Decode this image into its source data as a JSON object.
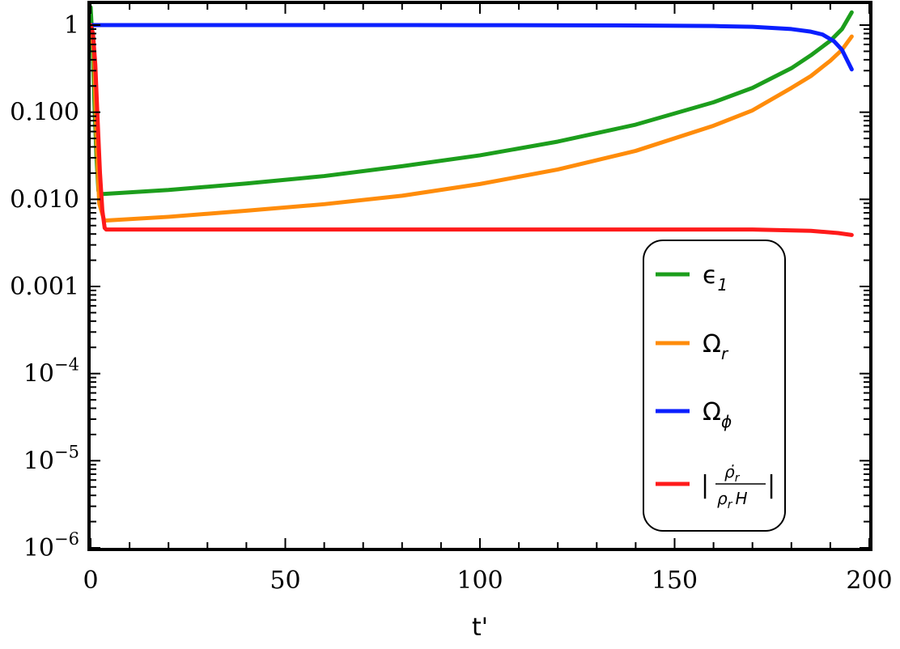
{
  "chart_data": {
    "type": "line",
    "xlabel": "t'",
    "ylabel": "",
    "xlim": [
      0,
      200
    ],
    "ylim": [
      1e-06,
      3
    ],
    "y_scale": "log",
    "grid": false,
    "legend_position": "bottom-right",
    "x_ticks": [
      {
        "value": 0,
        "label": "0"
      },
      {
        "value": 50,
        "label": "50"
      },
      {
        "value": 100,
        "label": "100"
      },
      {
        "value": 150,
        "label": "150"
      },
      {
        "value": 200,
        "label": "200"
      }
    ],
    "y_ticks": [
      {
        "value": 1,
        "label": "1"
      },
      {
        "value": 0.1,
        "label": "0.100"
      },
      {
        "value": 0.01,
        "label": "0.010"
      },
      {
        "value": 0.001,
        "label": "0.001"
      },
      {
        "value": 0.0001,
        "label": "10",
        "exponent": "−4"
      },
      {
        "value": 1e-05,
        "label": "10",
        "exponent": "−5"
      },
      {
        "value": 1e-06,
        "label": "10",
        "exponent": "−6"
      }
    ],
    "series": [
      {
        "name": "ϵ1",
        "legend_main": "ϵ",
        "legend_sub": "1",
        "color": "#1c9e1c",
        "points": [
          [
            0,
            1.6
          ],
          [
            0.5,
            0.6
          ],
          [
            1,
            0.12
          ],
          [
            1.5,
            0.03
          ],
          [
            2,
            0.0125
          ],
          [
            3,
            0.0115
          ],
          [
            20,
            0.0128
          ],
          [
            40,
            0.0152
          ],
          [
            60,
            0.0185
          ],
          [
            80,
            0.024
          ],
          [
            100,
            0.032
          ],
          [
            120,
            0.046
          ],
          [
            140,
            0.072
          ],
          [
            160,
            0.13
          ],
          [
            170,
            0.19
          ],
          [
            180,
            0.32
          ],
          [
            185,
            0.45
          ],
          [
            190,
            0.66
          ],
          [
            193,
            0.9
          ],
          [
            195.5,
            1.4
          ]
        ]
      },
      {
        "name": "Ωr",
        "legend_main": "Ω",
        "legend_sub": "r",
        "color": "#ff8c0a",
        "points": [
          [
            0,
            1.0
          ],
          [
            0.8,
            0.5
          ],
          [
            1.5,
            0.05
          ],
          [
            2.2,
            0.009
          ],
          [
            3.5,
            0.0057
          ],
          [
            20,
            0.0063
          ],
          [
            40,
            0.0074
          ],
          [
            60,
            0.0088
          ],
          [
            80,
            0.011
          ],
          [
            100,
            0.015
          ],
          [
            120,
            0.022
          ],
          [
            140,
            0.036
          ],
          [
            160,
            0.07
          ],
          [
            170,
            0.105
          ],
          [
            180,
            0.19
          ],
          [
            185,
            0.26
          ],
          [
            190,
            0.39
          ],
          [
            193,
            0.52
          ],
          [
            195.5,
            0.74
          ]
        ]
      },
      {
        "name": "Ωϕ",
        "legend_main": "Ω",
        "legend_sub": "ϕ",
        "color": "#0a1fff",
        "points": [
          [
            0,
            1.0
          ],
          [
            40,
            1.0
          ],
          [
            80,
            1.0
          ],
          [
            100,
            0.998
          ],
          [
            120,
            0.995
          ],
          [
            140,
            0.99
          ],
          [
            160,
            0.975
          ],
          [
            170,
            0.955
          ],
          [
            180,
            0.9
          ],
          [
            185,
            0.84
          ],
          [
            188,
            0.78
          ],
          [
            191,
            0.65
          ],
          [
            193,
            0.52
          ],
          [
            195.5,
            0.31
          ]
        ]
      },
      {
        "name": "|ρ̇r/(ρr H)|",
        "legend_num": "ρ̇",
        "legend_num_sub": "r",
        "legend_den": "ρ",
        "legend_den_sub": "r",
        "legend_den_tail": "H",
        "color": "#ff1a1a",
        "points": [
          [
            0,
            1.0
          ],
          [
            0.6,
            0.8
          ],
          [
            1.2,
            0.35
          ],
          [
            1.8,
            0.08
          ],
          [
            2.4,
            0.02
          ],
          [
            3,
            0.0075
          ],
          [
            3.6,
            0.0047
          ],
          [
            4,
            0.0045
          ],
          [
            20,
            0.0045
          ],
          [
            60,
            0.0045
          ],
          [
            100,
            0.0045
          ],
          [
            140,
            0.0045
          ],
          [
            170,
            0.0045
          ],
          [
            185,
            0.00435
          ],
          [
            192,
            0.0041
          ],
          [
            195.5,
            0.0039
          ]
        ]
      }
    ]
  }
}
